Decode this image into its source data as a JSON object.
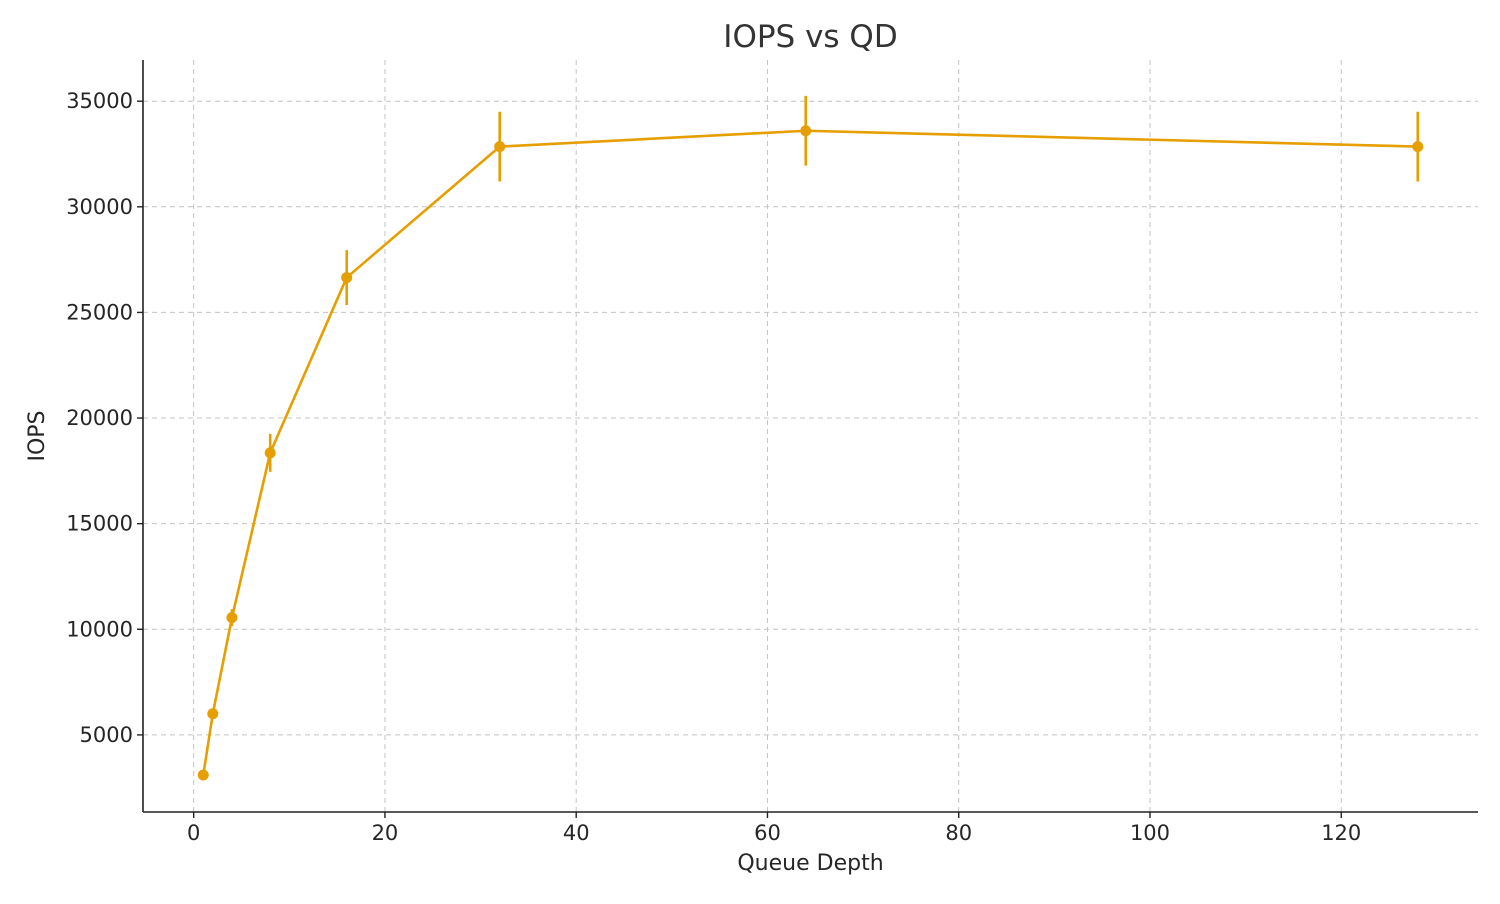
{
  "chart_data": {
    "type": "line",
    "title": "IOPS vs QD",
    "xlabel": "Queue Depth",
    "ylabel": "IOPS",
    "xlim": [
      -5.3,
      134.3
    ],
    "ylim": [
      1350,
      36950
    ],
    "xticks": [
      0,
      20,
      40,
      60,
      80,
      100,
      120
    ],
    "yticks": [
      5000,
      10000,
      15000,
      20000,
      25000,
      30000,
      35000
    ],
    "grid": true,
    "color": "#E69F00",
    "series": [
      {
        "x": [
          1,
          2,
          4,
          8,
          16,
          32,
          64,
          128
        ],
        "y": [
          3100,
          6000,
          10550,
          18350,
          26650,
          32850,
          33600,
          32850
        ],
        "error": [
          0,
          0,
          400,
          900,
          1300,
          1650,
          1650,
          1650
        ]
      }
    ]
  }
}
